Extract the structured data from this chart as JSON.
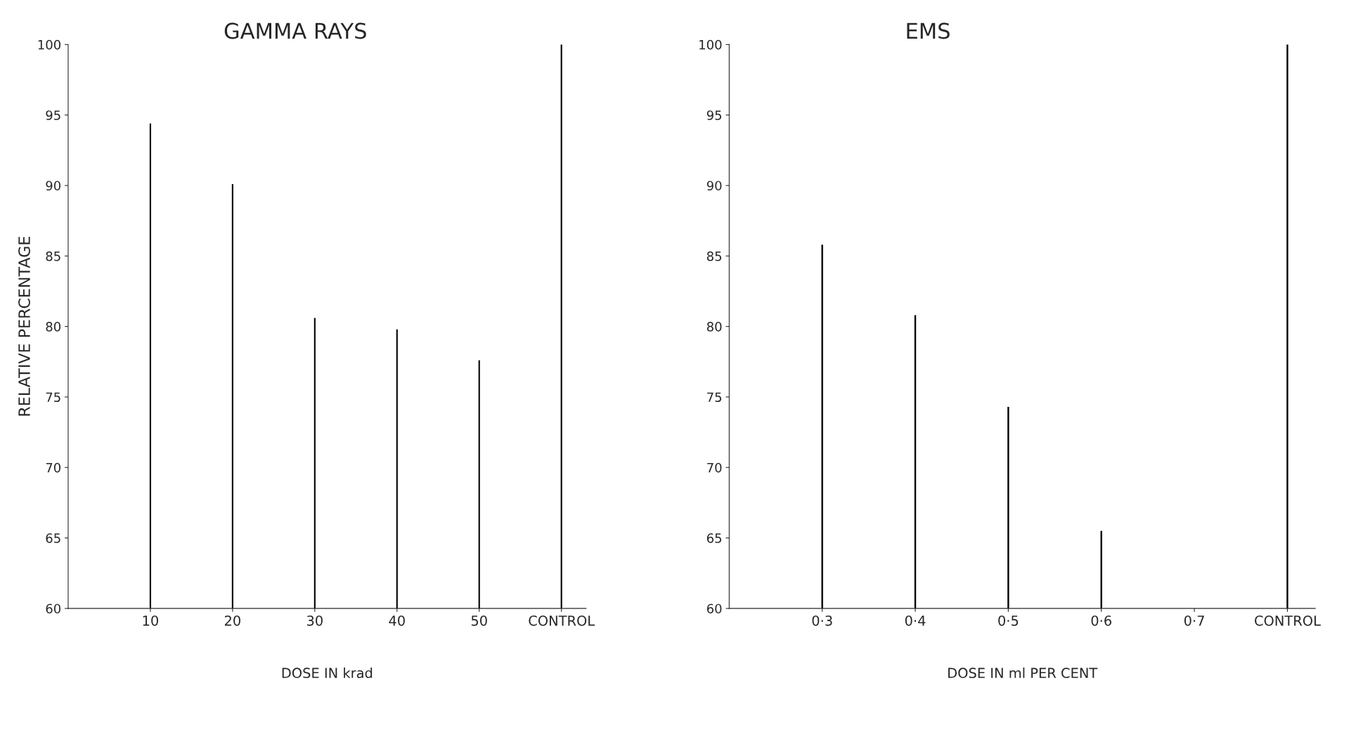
{
  "chart_data": [
    {
      "type": "bar",
      "title": "GAMMA RAYS",
      "xlabel": "DOSE IN krad",
      "ylabel": "RELATIVE PERCENTAGE",
      "categories": [
        "10",
        "20",
        "30",
        "40",
        "50",
        "CONTROL"
      ],
      "values": [
        94.4,
        90.1,
        80.6,
        79.8,
        77.6,
        100
      ],
      "color": "#000000",
      "ylim": [
        60,
        100
      ],
      "yticks": [
        60,
        65,
        70,
        75,
        80,
        85,
        90,
        95,
        100
      ],
      "grid": false
    },
    {
      "type": "bar",
      "title": "EMS",
      "xlabel": "DOSE IN ml PER CENT",
      "categories": [
        "0·3",
        "0·4",
        "0·5",
        "0·6",
        "0·7",
        "CONTROL"
      ],
      "values": [
        85.8,
        80.8,
        74.3,
        65.5,
        null,
        100
      ],
      "color": "#000000",
      "ylim": [
        60,
        100
      ],
      "yticks": [
        60,
        65,
        70,
        75,
        80,
        85,
        90,
        95,
        100
      ],
      "grid": false
    }
  ]
}
